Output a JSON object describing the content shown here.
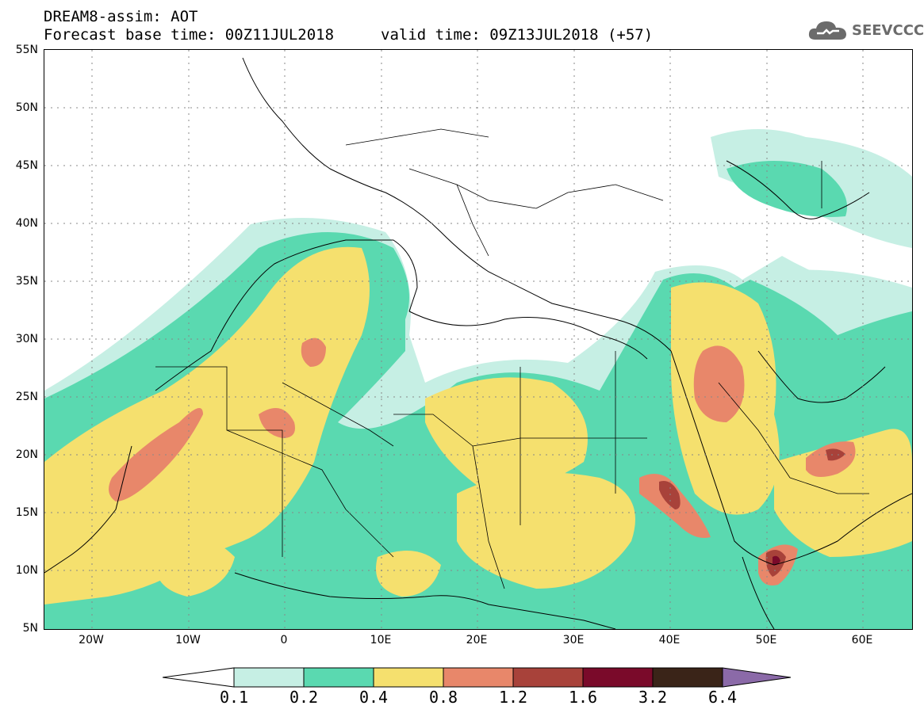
{
  "header": {
    "title_line1": "DREAM8-assim: AOT",
    "title_line2_left": "Forecast base time: 00Z11JUL2018",
    "title_line2_right": "valid time: 09Z13JUL2018 (+57)"
  },
  "logo": {
    "text": "SEEVCCC",
    "icon": "cloud-icon",
    "color": "#6b6b6b"
  },
  "map": {
    "variable": "AOT",
    "lat_labels": [
      "55N",
      "50N",
      "45N",
      "40N",
      "35N",
      "30N",
      "25N",
      "20N",
      "15N",
      "10N",
      "5N"
    ],
    "lon_labels": [
      "20W",
      "10W",
      "0",
      "10E",
      "20E",
      "30E",
      "40E",
      "50E",
      "60E"
    ],
    "extent": {
      "lon_min": -25,
      "lon_max": 65,
      "lat_min": 5,
      "lat_max": 55
    }
  },
  "colorbar": {
    "labels": [
      "0.1",
      "0.2",
      "0.4",
      "0.8",
      "1.2",
      "1.6",
      "3.2",
      "6.4"
    ],
    "colors": [
      "#ffffff",
      "#c6efe4",
      "#5ad9b0",
      "#f5e06e",
      "#e8876a",
      "#a8423a",
      "#7a0a2a",
      "#3a2418",
      "#8b6aa8"
    ]
  }
}
